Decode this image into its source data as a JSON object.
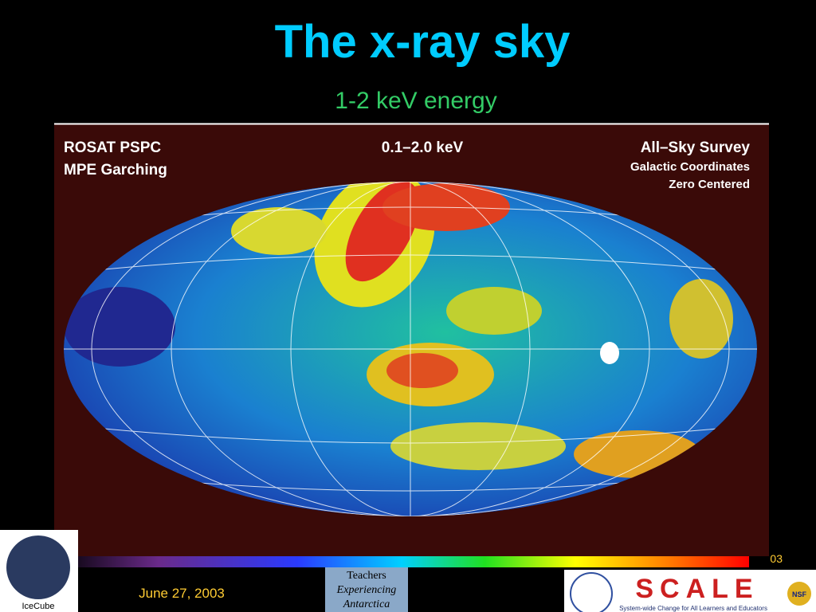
{
  "slide": {
    "title": "The x-ray sky",
    "subtitle": "1-2 keV energy",
    "map": {
      "left_labels": [
        "ROSAT PSPC",
        "MPE Garching"
      ],
      "center_label": "0.1–2.0 keV",
      "right_labels": [
        "All–Sky Survey",
        "Galactic Coordinates",
        "Zero Centered"
      ]
    },
    "footer": {
      "date": "June 27, 2003",
      "page": "03"
    },
    "logos": {
      "left": "IceCube",
      "middle": [
        "Teachers",
        "Experiencing",
        "Antarctica"
      ],
      "right": "SCALE",
      "right_tagline": "System-wide Change for All Learners and Educators",
      "badge": "NSF"
    }
  }
}
